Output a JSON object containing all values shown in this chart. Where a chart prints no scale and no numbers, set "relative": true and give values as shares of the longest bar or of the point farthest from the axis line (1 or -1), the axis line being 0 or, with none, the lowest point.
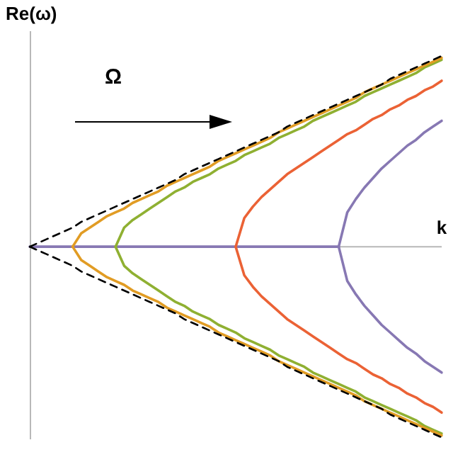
{
  "chart_data": {
    "type": "line",
    "relative": true,
    "xlabel": "k",
    "ylabel": "Re(ω)",
    "annotations": [
      "Ω"
    ],
    "legend": false,
    "marker": "none",
    "categories": [
      null,
      null,
      null,
      null,
      null,
      null,
      null,
      null,
      null,
      null,
      null,
      null,
      null,
      null,
      null,
      null,
      null,
      null,
      null,
      null,
      null,
      null,
      null,
      null,
      null,
      null,
      null,
      null,
      null,
      null,
      null,
      null,
      null,
      null,
      null,
      null,
      null,
      null,
      null,
      null,
      null,
      null,
      null,
      null,
      null,
      null,
      null,
      null,
      null
    ],
    "series": [
      {
        "color": "#000000",
        "line_style": "dashed",
        "values": [
          0,
          0.02,
          0.04,
          0.06,
          0.08,
          0.1,
          0.13,
          0.15,
          0.17,
          0.19,
          0.21,
          0.23,
          0.25,
          0.27,
          0.29,
          0.31,
          0.33,
          0.35,
          0.38,
          0.4,
          0.42,
          0.44,
          0.46,
          0.48,
          0.5,
          0.52,
          0.54,
          0.56,
          0.58,
          0.6,
          0.63,
          0.65,
          0.67,
          0.69,
          0.71,
          0.73,
          0.75,
          0.77,
          0.79,
          0.81,
          0.83,
          0.85,
          0.88,
          0.9,
          0.92,
          0.94,
          0.96,
          0.98,
          1.0
        ]
      },
      {
        "color": "#000000",
        "line_style": "dashed",
        "values": [
          0,
          -0.02,
          -0.04,
          -0.06,
          -0.08,
          -0.1,
          -0.13,
          -0.15,
          -0.17,
          -0.19,
          -0.21,
          -0.23,
          -0.25,
          -0.27,
          -0.29,
          -0.31,
          -0.33,
          -0.35,
          -0.38,
          -0.4,
          -0.42,
          -0.44,
          -0.46,
          -0.48,
          -0.5,
          -0.52,
          -0.54,
          -0.56,
          -0.58,
          -0.6,
          -0.63,
          -0.65,
          -0.67,
          -0.69,
          -0.71,
          -0.73,
          -0.75,
          -0.77,
          -0.79,
          -0.81,
          -0.83,
          -0.85,
          -0.88,
          -0.9,
          -0.92,
          -0.94,
          -0.96,
          -0.98,
          -1.0
        ]
      },
      {
        "color": "#e19c24",
        "values": [
          null,
          null,
          null,
          null,
          null,
          0,
          0.07,
          0.1,
          0.13,
          0.16,
          0.18,
          0.2,
          0.23,
          0.25,
          0.27,
          0.29,
          0.32,
          0.34,
          0.36,
          0.38,
          0.4,
          0.42,
          0.45,
          0.47,
          0.49,
          0.51,
          0.53,
          0.55,
          0.57,
          0.6,
          0.62,
          0.64,
          0.66,
          0.68,
          0.7,
          0.72,
          0.74,
          0.76,
          0.78,
          0.81,
          0.83,
          0.85,
          0.87,
          0.89,
          0.91,
          0.93,
          0.95,
          0.97,
          0.99
        ]
      },
      {
        "color": "#e19c24",
        "values": [
          null,
          null,
          null,
          null,
          null,
          0,
          -0.07,
          -0.1,
          -0.13,
          -0.16,
          -0.18,
          -0.2,
          -0.23,
          -0.25,
          -0.27,
          -0.29,
          -0.32,
          -0.34,
          -0.36,
          -0.38,
          -0.4,
          -0.42,
          -0.45,
          -0.47,
          -0.49,
          -0.51,
          -0.53,
          -0.55,
          -0.57,
          -0.6,
          -0.62,
          -0.64,
          -0.66,
          -0.68,
          -0.7,
          -0.72,
          -0.74,
          -0.76,
          -0.78,
          -0.81,
          -0.83,
          -0.85,
          -0.87,
          -0.89,
          -0.91,
          -0.93,
          -0.95,
          -0.97,
          -0.99
        ]
      },
      {
        "color": "#8fb032",
        "values": [
          null,
          null,
          null,
          null,
          null,
          null,
          null,
          null,
          null,
          null,
          0,
          0.1,
          0.14,
          0.17,
          0.2,
          0.23,
          0.26,
          0.29,
          0.31,
          0.34,
          0.36,
          0.38,
          0.41,
          0.43,
          0.45,
          0.48,
          0.5,
          0.52,
          0.54,
          0.57,
          0.59,
          0.61,
          0.63,
          0.66,
          0.68,
          0.7,
          0.72,
          0.74,
          0.76,
          0.79,
          0.81,
          0.83,
          0.85,
          0.87,
          0.89,
          0.91,
          0.94,
          0.96,
          0.98
        ]
      },
      {
        "color": "#8fb032",
        "values": [
          null,
          null,
          null,
          null,
          null,
          null,
          null,
          null,
          null,
          null,
          0,
          -0.1,
          -0.14,
          -0.17,
          -0.2,
          -0.23,
          -0.26,
          -0.29,
          -0.31,
          -0.34,
          -0.36,
          -0.38,
          -0.41,
          -0.43,
          -0.45,
          -0.48,
          -0.5,
          -0.52,
          -0.54,
          -0.57,
          -0.59,
          -0.61,
          -0.63,
          -0.66,
          -0.68,
          -0.7,
          -0.72,
          -0.74,
          -0.76,
          -0.79,
          -0.81,
          -0.83,
          -0.85,
          -0.87,
          -0.89,
          -0.91,
          -0.94,
          -0.96,
          -0.98
        ]
      },
      {
        "color": "#eb6235",
        "values": [
          null,
          null,
          null,
          null,
          null,
          null,
          null,
          null,
          null,
          null,
          null,
          null,
          null,
          null,
          null,
          null,
          null,
          null,
          null,
          null,
          null,
          null,
          null,
          null,
          0,
          0.15,
          0.21,
          0.26,
          0.3,
          0.34,
          0.38,
          0.41,
          0.44,
          0.47,
          0.5,
          0.53,
          0.56,
          0.59,
          0.61,
          0.64,
          0.67,
          0.69,
          0.72,
          0.74,
          0.77,
          0.79,
          0.82,
          0.84,
          0.87
        ]
      },
      {
        "color": "#eb6235",
        "values": [
          null,
          null,
          null,
          null,
          null,
          null,
          null,
          null,
          null,
          null,
          null,
          null,
          null,
          null,
          null,
          null,
          null,
          null,
          null,
          null,
          null,
          null,
          null,
          null,
          0,
          -0.15,
          -0.21,
          -0.26,
          -0.3,
          -0.34,
          -0.38,
          -0.41,
          -0.44,
          -0.47,
          -0.5,
          -0.53,
          -0.56,
          -0.59,
          -0.61,
          -0.64,
          -0.67,
          -0.69,
          -0.72,
          -0.74,
          -0.77,
          -0.79,
          -0.82,
          -0.84,
          -0.87
        ]
      },
      {
        "color": "#8778b3",
        "values": [
          0,
          0,
          0,
          0,
          0,
          0,
          0,
          0,
          0,
          0,
          0,
          0,
          0,
          0,
          0,
          0,
          0,
          0,
          0,
          0,
          0,
          0,
          0,
          0,
          0,
          0,
          0,
          0,
          0,
          0,
          0,
          0,
          0,
          0,
          0,
          0,
          0,
          null,
          null,
          null,
          null,
          null,
          null,
          null,
          null,
          null,
          null,
          null,
          null
        ]
      },
      {
        "color": "#8778b3",
        "values": [
          null,
          null,
          null,
          null,
          null,
          null,
          null,
          null,
          null,
          null,
          null,
          null,
          null,
          null,
          null,
          null,
          null,
          null,
          null,
          null,
          null,
          null,
          null,
          null,
          null,
          null,
          null,
          null,
          null,
          null,
          null,
          null,
          null,
          null,
          null,
          null,
          0,
          0.18,
          0.25,
          0.31,
          0.36,
          0.41,
          0.45,
          0.49,
          0.53,
          0.56,
          0.6,
          0.63,
          0.66
        ]
      },
      {
        "color": "#8778b3",
        "values": [
          null,
          null,
          null,
          null,
          null,
          null,
          null,
          null,
          null,
          null,
          null,
          null,
          null,
          null,
          null,
          null,
          null,
          null,
          null,
          null,
          null,
          null,
          null,
          null,
          null,
          null,
          null,
          null,
          null,
          null,
          null,
          null,
          null,
          null,
          null,
          null,
          0,
          -0.18,
          -0.25,
          -0.31,
          -0.36,
          -0.41,
          -0.45,
          -0.49,
          -0.53,
          -0.56,
          -0.6,
          -0.63,
          -0.66
        ]
      }
    ]
  }
}
